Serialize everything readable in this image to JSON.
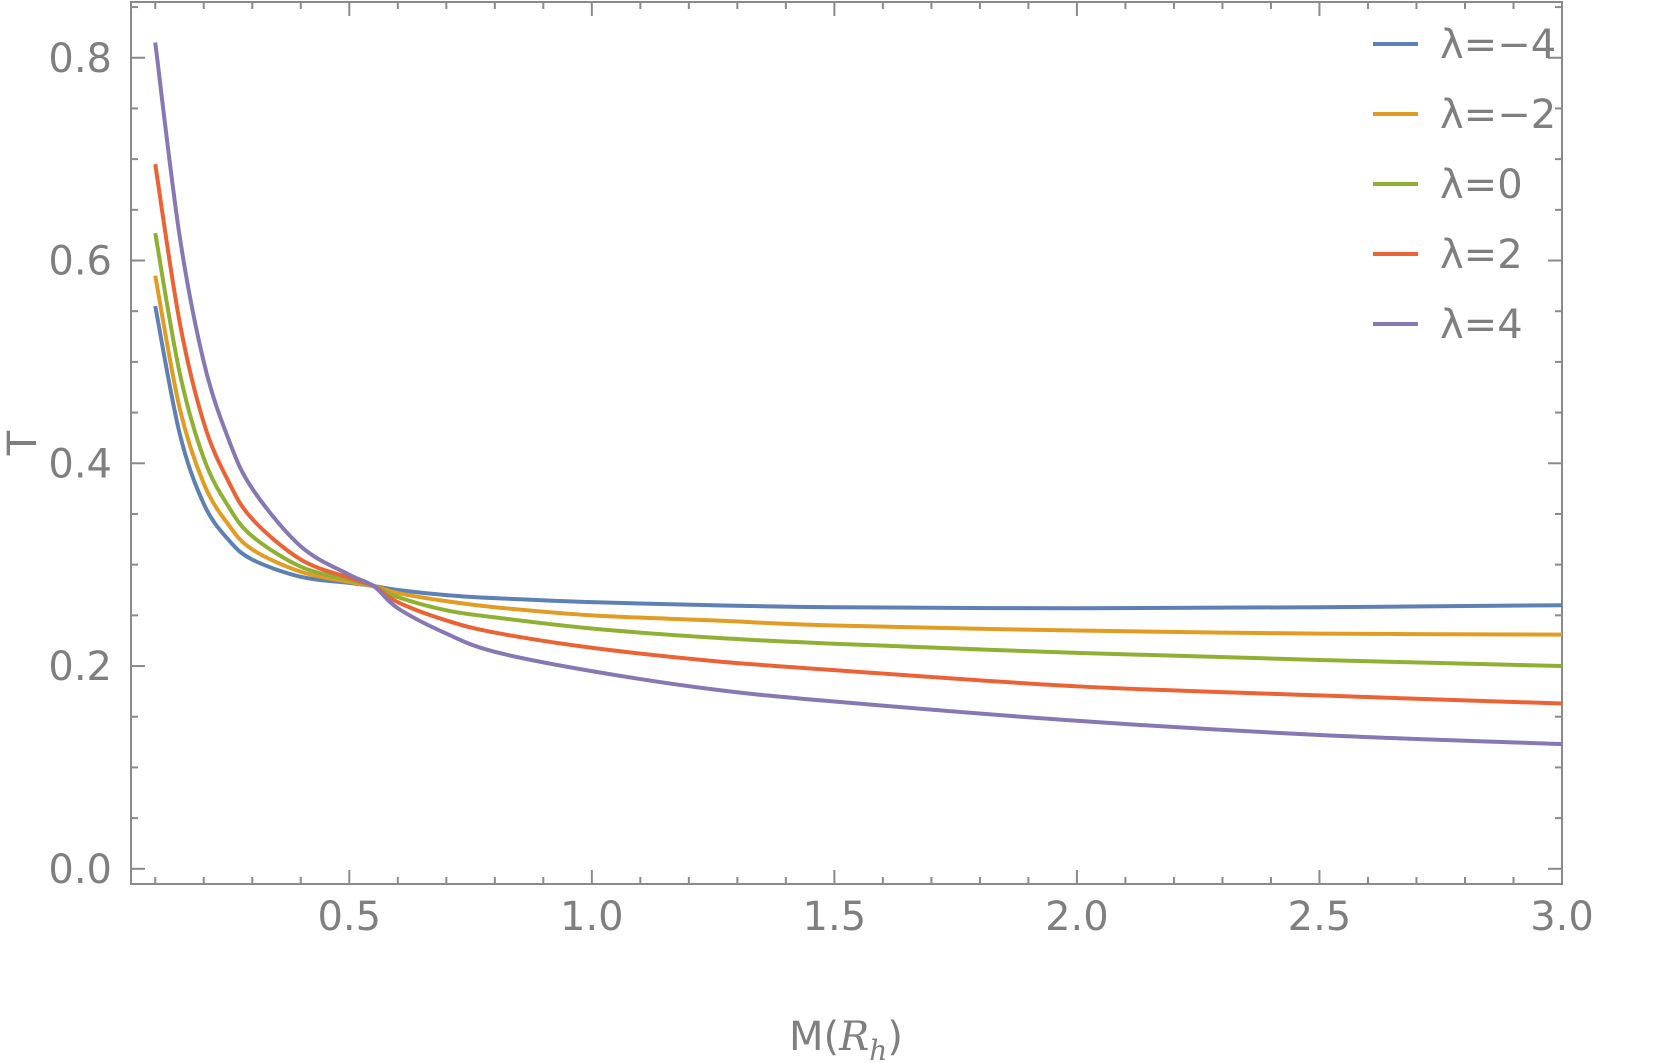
{
  "chart_data": {
    "type": "line",
    "xlabel": "M(R_h)",
    "xlabel_main": "M(",
    "xlabel_sub_base": "R",
    "xlabel_sub": "h",
    "xlabel_close": ")",
    "ylabel": "T",
    "xlim": [
      0.05,
      3.0
    ],
    "ylim": [
      -0.015,
      0.855
    ],
    "x_ticks": [
      "0.5",
      "1.0",
      "1.5",
      "2.0",
      "2.5",
      "3.0"
    ],
    "y_ticks": [
      "0.0",
      "0.2",
      "0.4",
      "0.6",
      "0.8"
    ],
    "grid": false,
    "legend_position": "top-right",
    "x": [
      0.1,
      0.15,
      0.2,
      0.25,
      0.3,
      0.4,
      0.5,
      0.55,
      0.6,
      0.7,
      0.8,
      1.0,
      1.25,
      1.5,
      2.0,
      2.5,
      3.0
    ],
    "series": [
      {
        "name": "λ=−4",
        "color": "#5e81b5",
        "values": [
          0.555,
          0.43,
          0.36,
          0.325,
          0.305,
          0.288,
          0.282,
          0.279,
          0.275,
          0.27,
          0.267,
          0.263,
          0.26,
          0.258,
          0.257,
          0.258,
          0.26
        ]
      },
      {
        "name": "λ=−2",
        "color": "#e19c24",
        "values": [
          0.585,
          0.455,
          0.38,
          0.34,
          0.315,
          0.293,
          0.283,
          0.279,
          0.272,
          0.264,
          0.258,
          0.25,
          0.245,
          0.24,
          0.235,
          0.232,
          0.231
        ]
      },
      {
        "name": "λ=0",
        "color": "#8fb032",
        "values": [
          0.627,
          0.49,
          0.405,
          0.358,
          0.328,
          0.298,
          0.285,
          0.279,
          0.268,
          0.255,
          0.248,
          0.237,
          0.228,
          0.222,
          0.213,
          0.206,
          0.2
        ]
      },
      {
        "name": "λ=2",
        "color": "#eb6235",
        "values": [
          0.695,
          0.54,
          0.44,
          0.383,
          0.345,
          0.305,
          0.287,
          0.279,
          0.263,
          0.245,
          0.233,
          0.218,
          0.205,
          0.196,
          0.18,
          0.171,
          0.163
        ]
      },
      {
        "name": "λ=4",
        "color": "#8778b3",
        "values": [
          0.815,
          0.625,
          0.5,
          0.425,
          0.375,
          0.318,
          0.29,
          0.279,
          0.257,
          0.232,
          0.214,
          0.195,
          0.177,
          0.165,
          0.146,
          0.132,
          0.123
        ]
      }
    ]
  }
}
